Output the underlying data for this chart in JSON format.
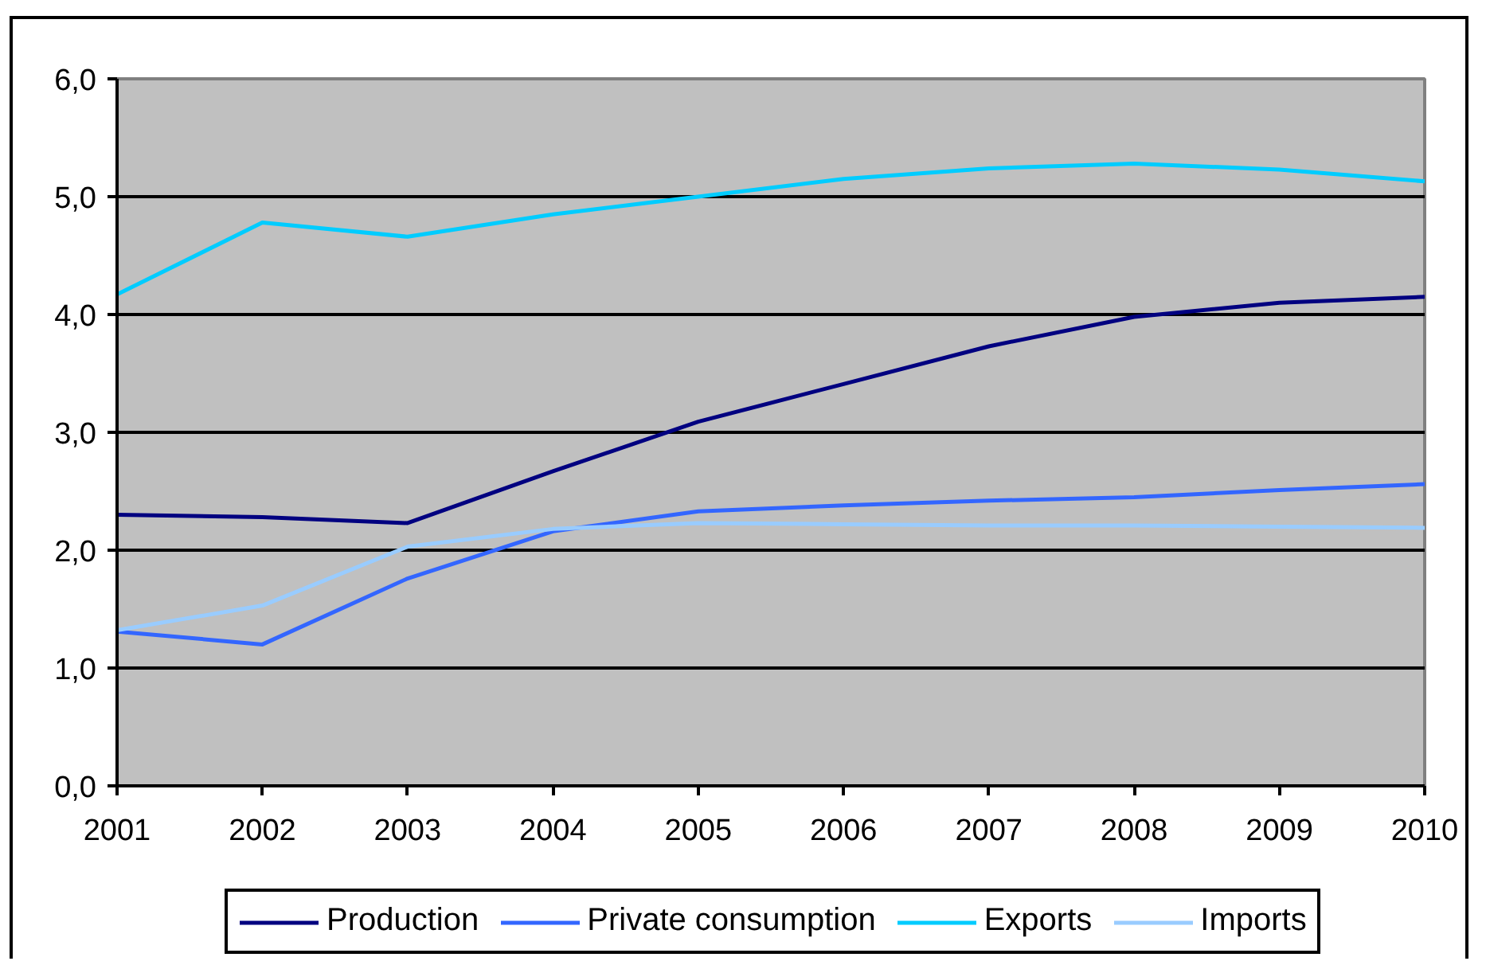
{
  "chart_data": {
    "type": "line",
    "x": [
      2001,
      2002,
      2003,
      2004,
      2005,
      2006,
      2007,
      2008,
      2009,
      2010
    ],
    "xlim": [
      2001,
      2010
    ],
    "xticks": [
      2001,
      2002,
      2003,
      2004,
      2005,
      2006,
      2007,
      2008,
      2009,
      2010
    ],
    "ylim": [
      0,
      6
    ],
    "yticks": [
      {
        "value": 0,
        "label": "0,0"
      },
      {
        "value": 1,
        "label": "1,0"
      },
      {
        "value": 2,
        "label": "2,0"
      },
      {
        "value": 3,
        "label": "3,0"
      },
      {
        "value": 4,
        "label": "4,0"
      },
      {
        "value": 5,
        "label": "5,0"
      },
      {
        "value": 6,
        "label": "6,0"
      }
    ],
    "grid": "y",
    "legend": "bottom",
    "series": [
      {
        "name": "Production",
        "color": "#000080",
        "values": [
          2.3,
          2.28,
          2.23,
          2.67,
          3.09,
          3.41,
          3.73,
          3.98,
          4.1,
          4.15
        ]
      },
      {
        "name": "Private consumption",
        "color": "#3366ff",
        "values": [
          1.31,
          1.2,
          1.76,
          2.16,
          2.33,
          2.38,
          2.42,
          2.45,
          2.51,
          2.56
        ]
      },
      {
        "name": "Exports",
        "color": "#00ccff",
        "values": [
          4.17,
          4.78,
          4.66,
          4.85,
          5.0,
          5.15,
          5.24,
          5.28,
          5.23,
          5.13
        ]
      },
      {
        "name": "Imports",
        "color": "#99ccff",
        "values": [
          1.32,
          1.53,
          2.03,
          2.18,
          2.23,
          2.22,
          2.21,
          2.21,
          2.2,
          2.19
        ]
      }
    ]
  }
}
